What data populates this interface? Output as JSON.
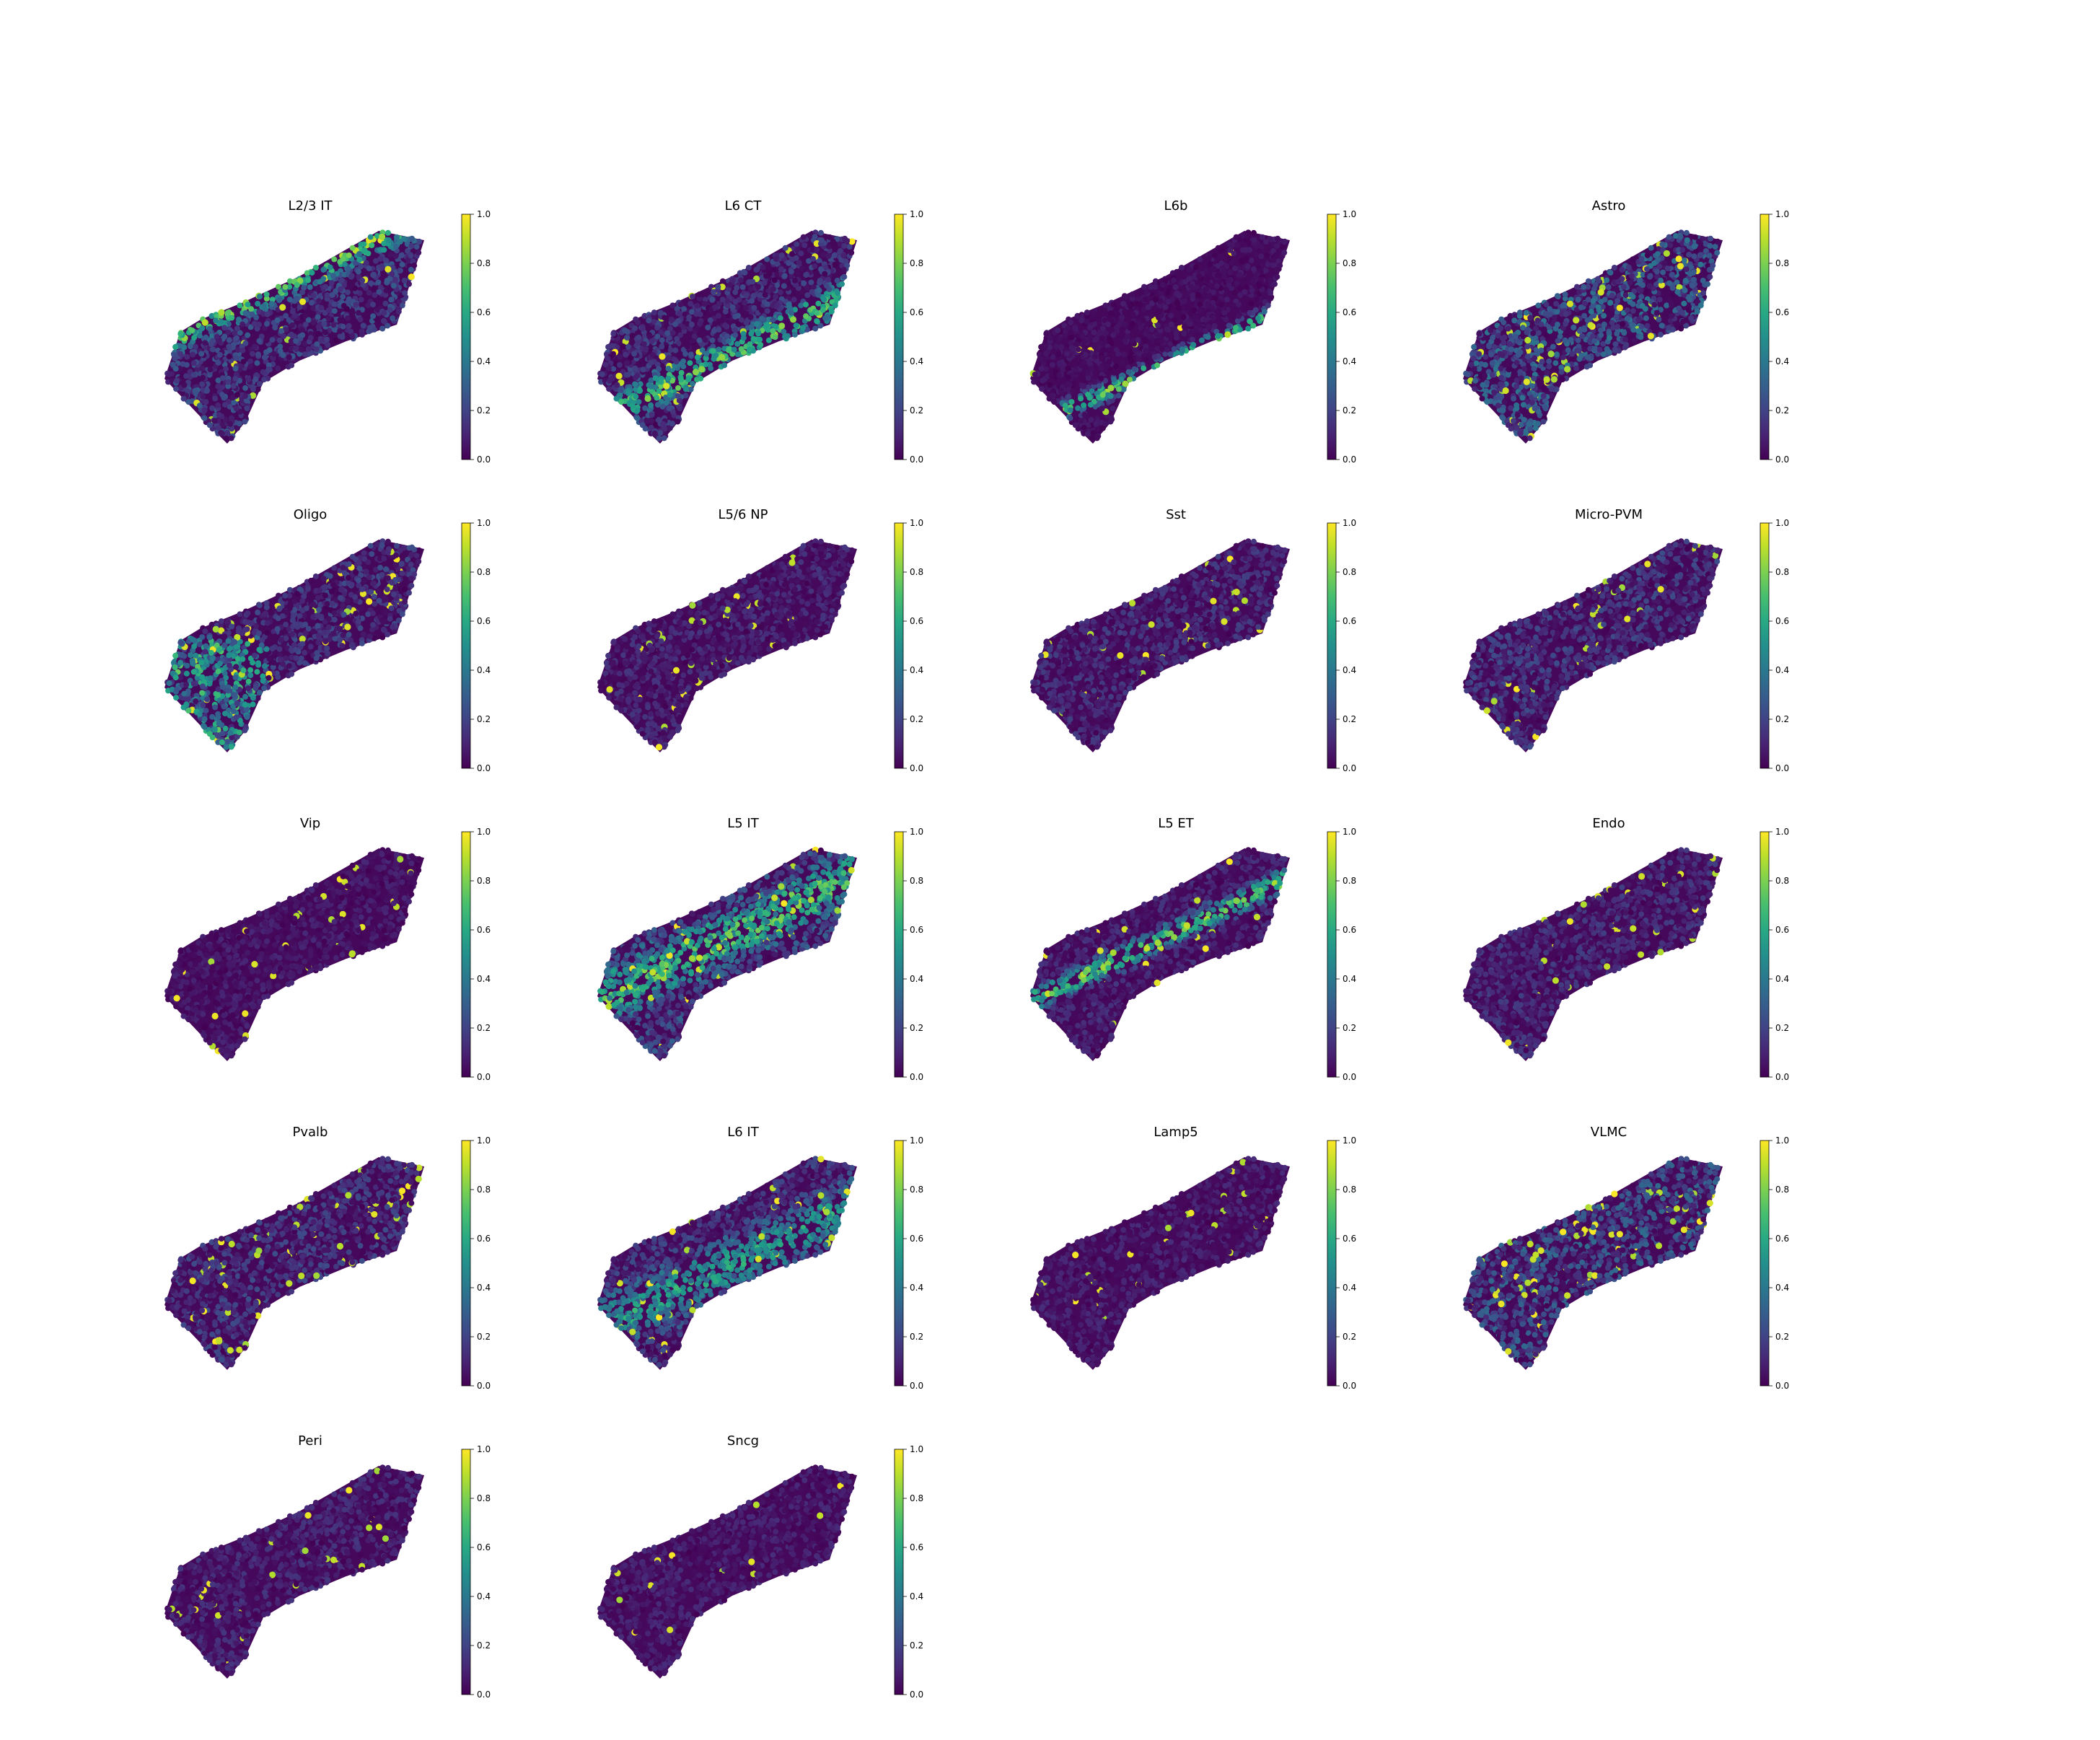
{
  "colormap": "viridis",
  "colors": {
    "background": "#ffffff",
    "tissue_base": "#440154"
  },
  "chart_data": [
    {
      "type": "scatter",
      "title": "L2/3 IT",
      "colorbar": {
        "min": 0.0,
        "max": 1.0,
        "ticks": [
          "0.0",
          "0.2",
          "0.4",
          "0.6",
          "0.8",
          "1.0"
        ]
      },
      "high_signal_band": "upper",
      "base_level": 0.18,
      "band_level": 0.75,
      "hotspot_fraction": 0.02
    },
    {
      "type": "scatter",
      "title": "L6 CT",
      "colorbar": {
        "min": 0.0,
        "max": 1.0,
        "ticks": [
          "0.0",
          "0.2",
          "0.4",
          "0.6",
          "0.8",
          "1.0"
        ]
      },
      "high_signal_band": "lower",
      "base_level": 0.15,
      "band_level": 0.7,
      "hotspot_fraction": 0.02
    },
    {
      "type": "scatter",
      "title": "L6b",
      "colorbar": {
        "min": 0.0,
        "max": 1.0,
        "ticks": [
          "0.0",
          "0.2",
          "0.4",
          "0.6",
          "0.8",
          "1.0"
        ]
      },
      "high_signal_band": "bottom-edge",
      "base_level": 0.05,
      "band_level": 0.85,
      "hotspot_fraction": 0.01
    },
    {
      "type": "scatter",
      "title": "Astro",
      "colorbar": {
        "min": 0.0,
        "max": 1.0,
        "ticks": [
          "0.0",
          "0.2",
          "0.4",
          "0.6",
          "0.8",
          "1.0"
        ]
      },
      "high_signal_band": "none",
      "base_level": 0.25,
      "band_level": 0.0,
      "hotspot_fraction": 0.06
    },
    {
      "type": "scatter",
      "title": "Oligo",
      "colorbar": {
        "min": 0.0,
        "max": 1.0,
        "ticks": [
          "0.0",
          "0.2",
          "0.4",
          "0.6",
          "0.8",
          "1.0"
        ]
      },
      "high_signal_band": "left-lower",
      "base_level": 0.15,
      "band_level": 0.55,
      "hotspot_fraction": 0.04
    },
    {
      "type": "scatter",
      "title": "L5/6 NP",
      "colorbar": {
        "min": 0.0,
        "max": 1.0,
        "ticks": [
          "0.0",
          "0.2",
          "0.4",
          "0.6",
          "0.8",
          "1.0"
        ]
      },
      "high_signal_band": "none",
      "base_level": 0.1,
      "band_level": 0.0,
      "hotspot_fraction": 0.03
    },
    {
      "type": "scatter",
      "title": "Sst",
      "colorbar": {
        "min": 0.0,
        "max": 1.0,
        "ticks": [
          "0.0",
          "0.2",
          "0.4",
          "0.6",
          "0.8",
          "1.0"
        ]
      },
      "high_signal_band": "none",
      "base_level": 0.12,
      "band_level": 0.0,
      "hotspot_fraction": 0.03
    },
    {
      "type": "scatter",
      "title": "Micro-PVM",
      "colorbar": {
        "min": 0.0,
        "max": 1.0,
        "ticks": [
          "0.0",
          "0.2",
          "0.4",
          "0.6",
          "0.8",
          "1.0"
        ]
      },
      "high_signal_band": "none",
      "base_level": 0.15,
      "band_level": 0.0,
      "hotspot_fraction": 0.03
    },
    {
      "type": "scatter",
      "title": "Vip",
      "colorbar": {
        "min": 0.0,
        "max": 1.0,
        "ticks": [
          "0.0",
          "0.2",
          "0.4",
          "0.6",
          "0.8",
          "1.0"
        ]
      },
      "high_signal_band": "none",
      "base_level": 0.07,
      "band_level": 0.0,
      "hotspot_fraction": 0.025
    },
    {
      "type": "scatter",
      "title": "L5 IT",
      "colorbar": {
        "min": 0.0,
        "max": 1.0,
        "ticks": [
          "0.0",
          "0.2",
          "0.4",
          "0.6",
          "0.8",
          "1.0"
        ]
      },
      "high_signal_band": "middle",
      "base_level": 0.2,
      "band_level": 0.65,
      "hotspot_fraction": 0.03
    },
    {
      "type": "scatter",
      "title": "L5 ET",
      "colorbar": {
        "min": 0.0,
        "max": 1.0,
        "ticks": [
          "0.0",
          "0.2",
          "0.4",
          "0.6",
          "0.8",
          "1.0"
        ]
      },
      "high_signal_band": "middle-narrow",
      "base_level": 0.1,
      "band_level": 0.8,
      "hotspot_fraction": 0.02
    },
    {
      "type": "scatter",
      "title": "Endo",
      "colorbar": {
        "min": 0.0,
        "max": 1.0,
        "ticks": [
          "0.0",
          "0.2",
          "0.4",
          "0.6",
          "0.8",
          "1.0"
        ]
      },
      "high_signal_band": "none",
      "base_level": 0.12,
      "band_level": 0.0,
      "hotspot_fraction": 0.03
    },
    {
      "type": "scatter",
      "title": "Pvalb",
      "colorbar": {
        "min": 0.0,
        "max": 1.0,
        "ticks": [
          "0.0",
          "0.2",
          "0.4",
          "0.6",
          "0.8",
          "1.0"
        ]
      },
      "high_signal_band": "none",
      "base_level": 0.15,
      "band_level": 0.0,
      "hotspot_fraction": 0.035
    },
    {
      "type": "scatter",
      "title": "L6 IT",
      "colorbar": {
        "min": 0.0,
        "max": 1.0,
        "ticks": [
          "0.0",
          "0.2",
          "0.4",
          "0.6",
          "0.8",
          "1.0"
        ]
      },
      "high_signal_band": "lower-broad",
      "base_level": 0.15,
      "band_level": 0.5,
      "hotspot_fraction": 0.03
    },
    {
      "type": "scatter",
      "title": "Lamp5",
      "colorbar": {
        "min": 0.0,
        "max": 1.0,
        "ticks": [
          "0.0",
          "0.2",
          "0.4",
          "0.6",
          "0.8",
          "1.0"
        ]
      },
      "high_signal_band": "none",
      "base_level": 0.08,
      "band_level": 0.0,
      "hotspot_fraction": 0.02
    },
    {
      "type": "scatter",
      "title": "VLMC",
      "colorbar": {
        "min": 0.0,
        "max": 1.0,
        "ticks": [
          "0.0",
          "0.2",
          "0.4",
          "0.6",
          "0.8",
          "1.0"
        ]
      },
      "high_signal_band": "none",
      "base_level": 0.22,
      "band_level": 0.0,
      "hotspot_fraction": 0.05
    },
    {
      "type": "scatter",
      "title": "Peri",
      "colorbar": {
        "min": 0.0,
        "max": 1.0,
        "ticks": [
          "0.0",
          "0.2",
          "0.4",
          "0.6",
          "0.8",
          "1.0"
        ]
      },
      "high_signal_band": "none",
      "base_level": 0.1,
      "band_level": 0.0,
      "hotspot_fraction": 0.025
    },
    {
      "type": "scatter",
      "title": "Sncg",
      "colorbar": {
        "min": 0.0,
        "max": 1.0,
        "ticks": [
          "0.0",
          "0.2",
          "0.4",
          "0.6",
          "0.8",
          "1.0"
        ]
      },
      "high_signal_band": "none",
      "base_level": 0.08,
      "band_level": 0.0,
      "hotspot_fraction": 0.02
    }
  ]
}
